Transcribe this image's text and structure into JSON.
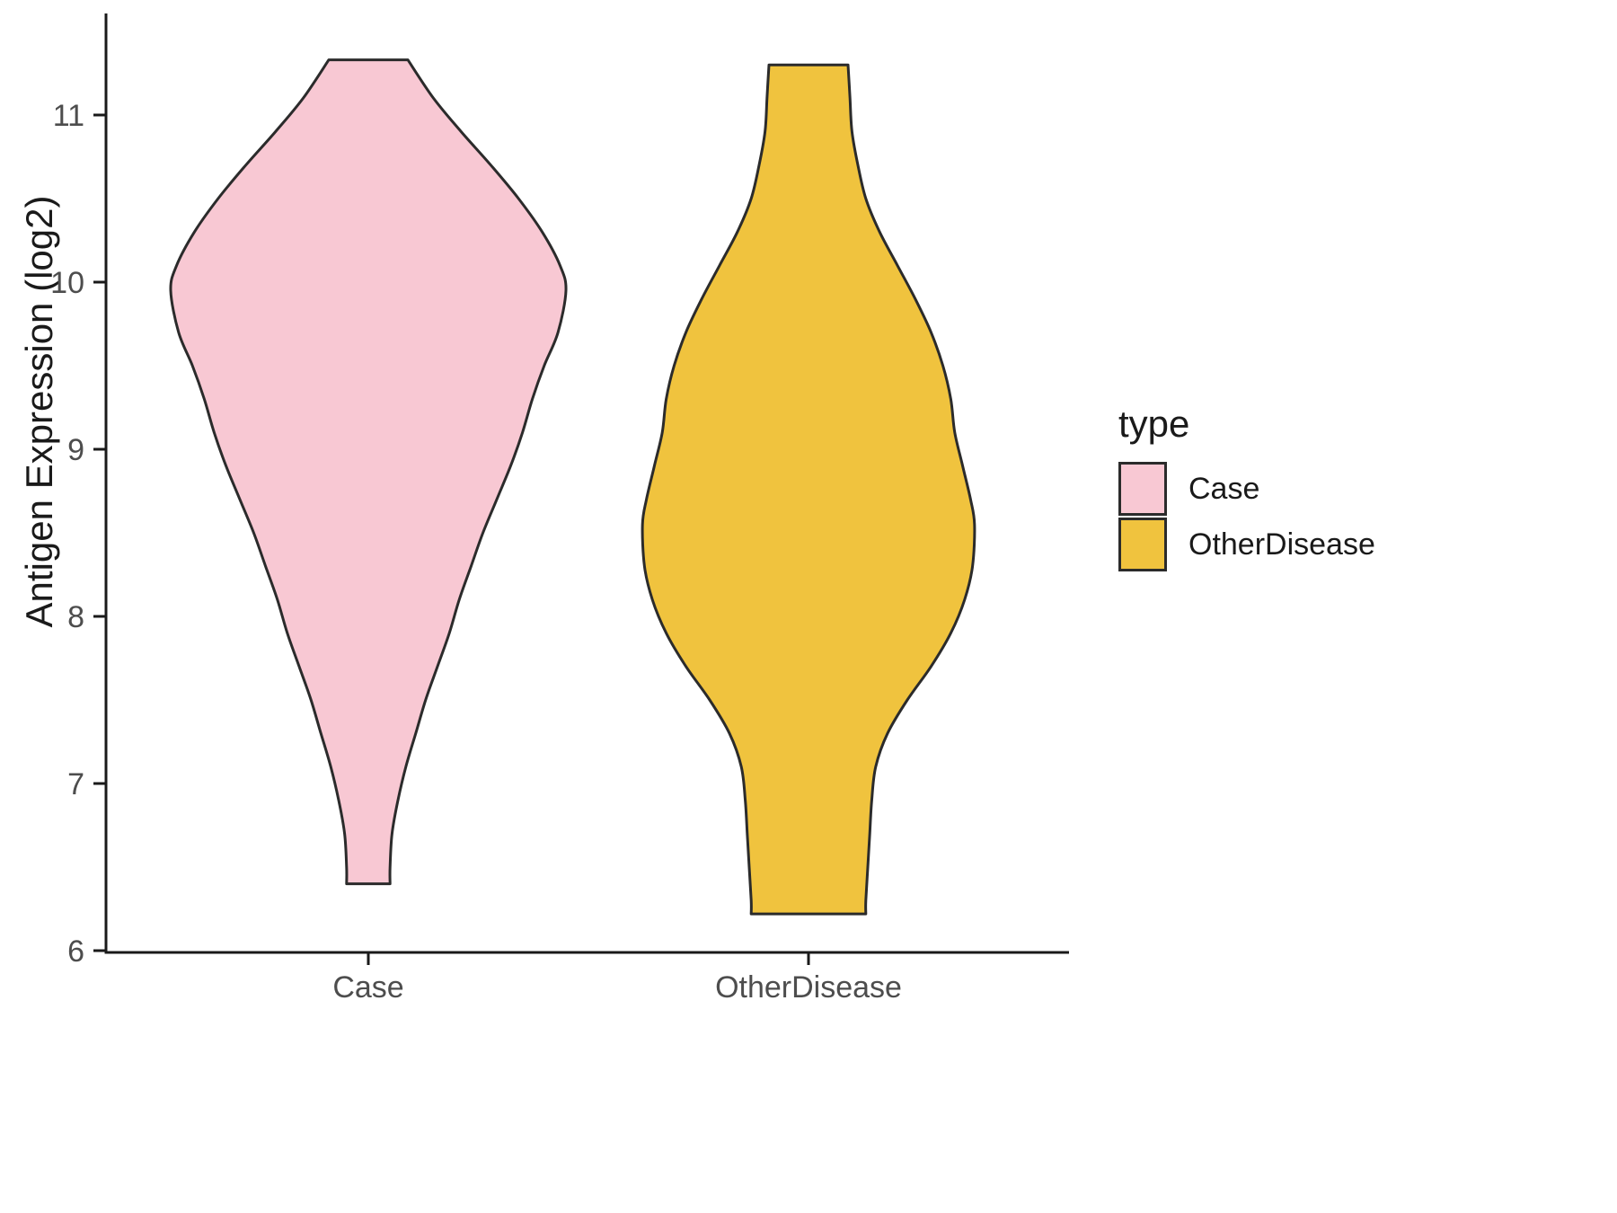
{
  "chart_data": {
    "type": "violin",
    "title": "",
    "xlabel": "",
    "ylabel": "Antigen Expression (log2)",
    "ylim": [
      6,
      11.5
    ],
    "yticks": [
      6,
      7,
      8,
      9,
      10,
      11
    ],
    "categories": [
      "Case",
      "OtherDisease"
    ],
    "grid": "off",
    "outline_color": "#2b2b2b",
    "axis_color": "#1a1a1a",
    "tick_label_color": "#4d4d4d",
    "legend": {
      "title": "type",
      "position": "right",
      "entries": [
        {
          "label": "Case",
          "color": "#F8C8D3"
        },
        {
          "label": "OtherDisease",
          "color": "#F0C33E"
        }
      ]
    },
    "series": [
      {
        "name": "Case",
        "color": "#F8C8D3",
        "flat_top_value": 11.33,
        "flat_bottom_value": 6.4,
        "profile": [
          [
            11.33,
            0.2
          ],
          [
            11.1,
            0.33
          ],
          [
            10.9,
            0.47
          ],
          [
            10.7,
            0.62
          ],
          [
            10.5,
            0.76
          ],
          [
            10.3,
            0.88
          ],
          [
            10.1,
            0.97
          ],
          [
            9.95,
            1.0
          ],
          [
            9.7,
            0.96
          ],
          [
            9.5,
            0.89
          ],
          [
            9.3,
            0.83
          ],
          [
            9.1,
            0.78
          ],
          [
            8.9,
            0.72
          ],
          [
            8.7,
            0.65
          ],
          [
            8.5,
            0.58
          ],
          [
            8.3,
            0.52
          ],
          [
            8.1,
            0.46
          ],
          [
            7.9,
            0.41
          ],
          [
            7.7,
            0.35
          ],
          [
            7.5,
            0.29
          ],
          [
            7.3,
            0.24
          ],
          [
            7.1,
            0.19
          ],
          [
            6.9,
            0.15
          ],
          [
            6.7,
            0.12
          ],
          [
            6.5,
            0.11
          ],
          [
            6.4,
            0.11
          ]
        ]
      },
      {
        "name": "OtherDisease",
        "color": "#F0C33E",
        "flat_top_value": 11.3,
        "flat_bottom_value": 6.22,
        "profile": [
          [
            11.3,
            0.2
          ],
          [
            11.1,
            0.21
          ],
          [
            10.9,
            0.22
          ],
          [
            10.7,
            0.25
          ],
          [
            10.5,
            0.29
          ],
          [
            10.3,
            0.36
          ],
          [
            10.1,
            0.45
          ],
          [
            9.9,
            0.54
          ],
          [
            9.7,
            0.62
          ],
          [
            9.5,
            0.68
          ],
          [
            9.3,
            0.72
          ],
          [
            9.1,
            0.74
          ],
          [
            8.9,
            0.78
          ],
          [
            8.7,
            0.82
          ],
          [
            8.55,
            0.84
          ],
          [
            8.3,
            0.83
          ],
          [
            8.1,
            0.79
          ],
          [
            7.9,
            0.72
          ],
          [
            7.7,
            0.62
          ],
          [
            7.5,
            0.5
          ],
          [
            7.3,
            0.4
          ],
          [
            7.1,
            0.34
          ],
          [
            6.9,
            0.32
          ],
          [
            6.7,
            0.31
          ],
          [
            6.5,
            0.3
          ],
          [
            6.3,
            0.29
          ],
          [
            6.22,
            0.29
          ]
        ]
      }
    ]
  }
}
